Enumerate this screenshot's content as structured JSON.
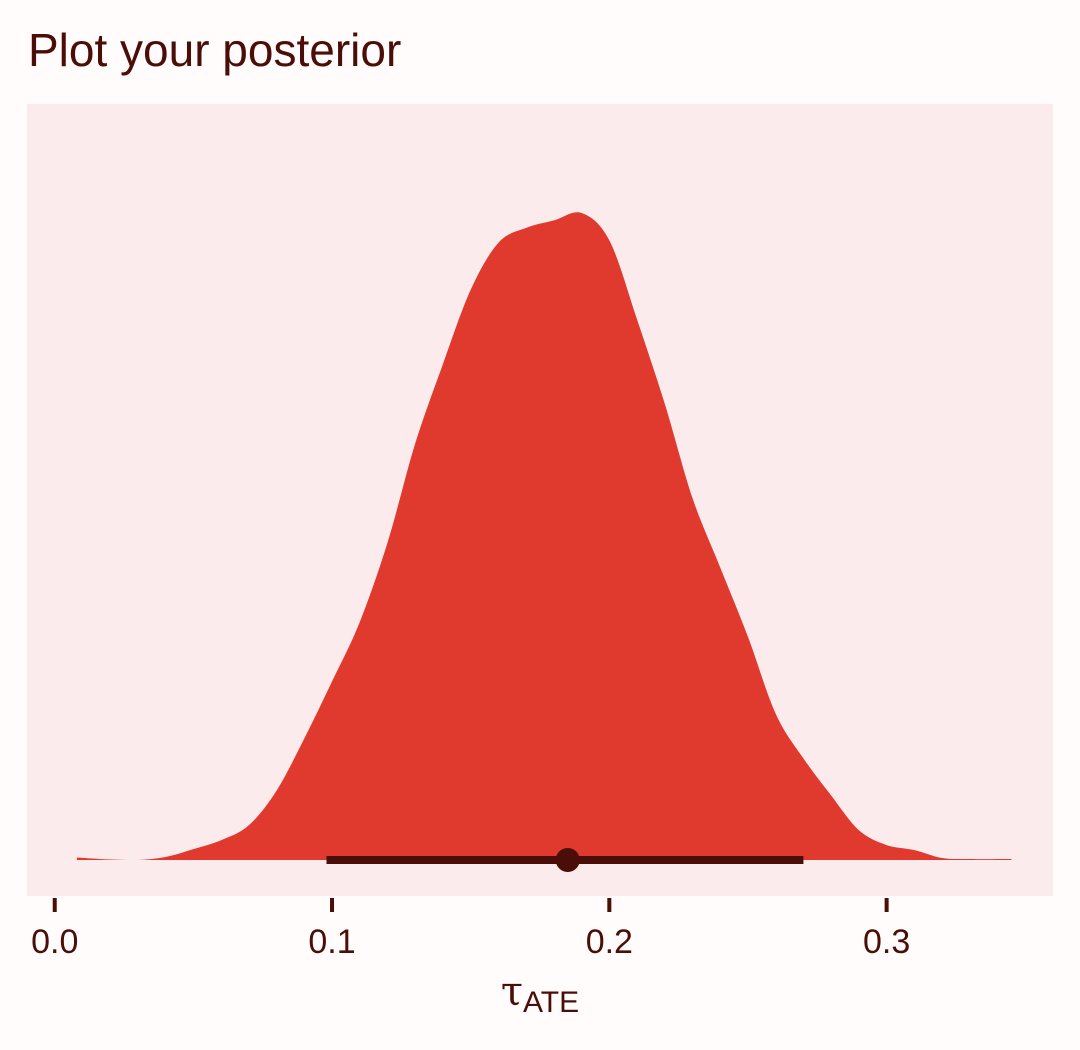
{
  "chart_data": {
    "type": "area",
    "title": "Plot your posterior",
    "xlabel": {
      "symbol": "τ",
      "subscript": "ATE"
    },
    "ylabel": "",
    "xlim": [
      -0.01,
      0.36
    ],
    "xticks": [
      {
        "value": 0.0,
        "label": "0.0"
      },
      {
        "value": 0.1,
        "label": "0.1"
      },
      {
        "value": 0.2,
        "label": "0.2"
      },
      {
        "value": 0.3,
        "label": "0.3"
      }
    ],
    "grid": false,
    "legend": "none",
    "density": {
      "x": [
        0.008,
        0.02,
        0.03,
        0.04,
        0.05,
        0.06,
        0.07,
        0.08,
        0.09,
        0.1,
        0.11,
        0.12,
        0.13,
        0.14,
        0.15,
        0.16,
        0.17,
        0.18,
        0.19,
        0.2,
        0.21,
        0.22,
        0.23,
        0.24,
        0.25,
        0.26,
        0.27,
        0.28,
        0.29,
        0.3,
        0.31,
        0.32,
        0.33,
        0.345
      ],
      "y": [
        0.005,
        0.001,
        0.0,
        0.006,
        0.022,
        0.04,
        0.07,
        0.14,
        0.245,
        0.36,
        0.48,
        0.64,
        0.84,
        1.0,
        1.15,
        1.245,
        1.275,
        1.29,
        1.305,
        1.25,
        1.09,
        0.92,
        0.73,
        0.59,
        0.45,
        0.295,
        0.205,
        0.13,
        0.06,
        0.03,
        0.02,
        0.004,
        0.002,
        0.002
      ]
    },
    "point_interval": {
      "point": 0.185,
      "lower": 0.098,
      "upper": 0.27
    },
    "colors": {
      "page_background": "#fffcfb",
      "panel_background": "#fcebec",
      "density_fill": "#e03a2e",
      "interval": "#4a0d08",
      "text": "#4a0d08",
      "tick": "#4a0d08"
    }
  }
}
